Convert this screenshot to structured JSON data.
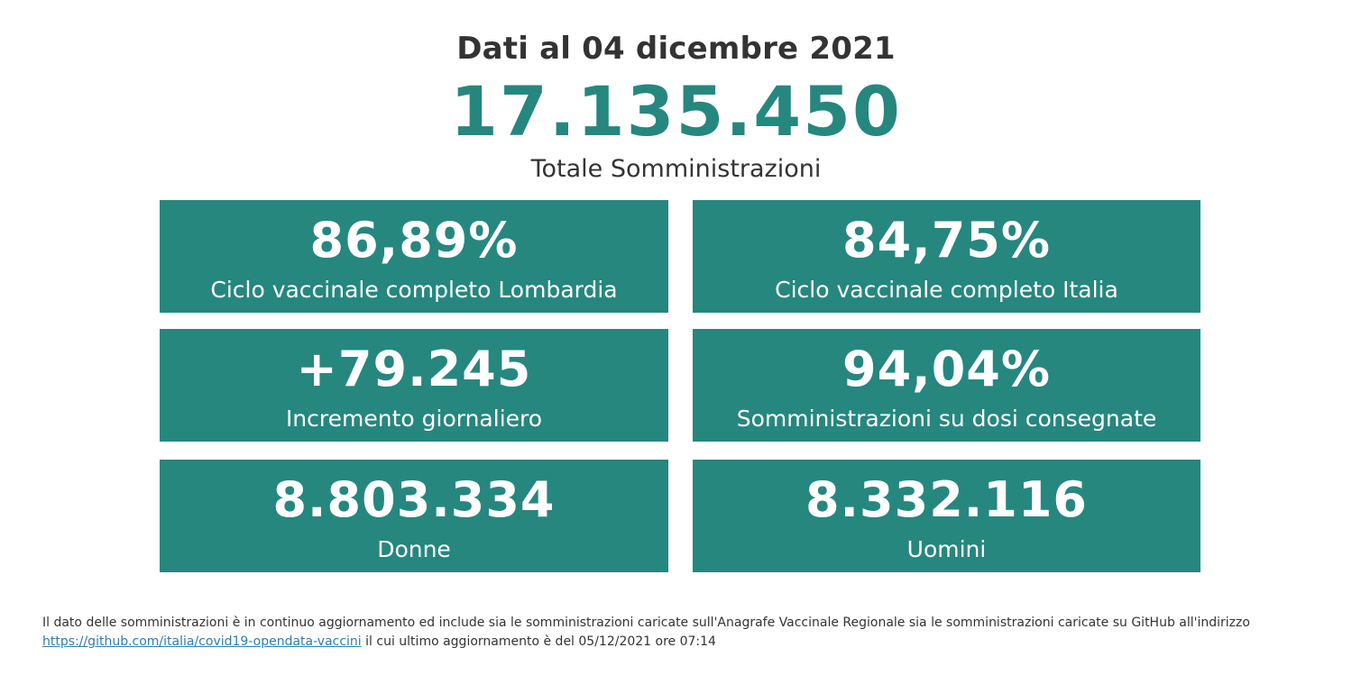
{
  "header": {
    "date_line": "Dati al 04 dicembre 2021",
    "total_value": "17.135.450",
    "total_label": "Totale Somministrazioni"
  },
  "cards": [
    {
      "value": "86,89%",
      "label": "Ciclo vaccinale completo Lombardia"
    },
    {
      "value": "84,75%",
      "label": "Ciclo vaccinale completo Italia"
    },
    {
      "value": "+79.245",
      "label": "Incremento giornaliero"
    },
    {
      "value": "94,04%",
      "label": "Somministrazioni su dosi consegnate"
    },
    {
      "value": "8.803.334",
      "label": "Donne"
    },
    {
      "value": "8.332.116",
      "label": "Uomini"
    }
  ],
  "footer": {
    "text_before": "Il dato delle somministrazioni è in continuo aggiornamento ed include sia le somministrazioni caricate sull'Anagrafe Vaccinale Regionale sia le somministrazioni caricate su GitHub all'indirizzo",
    "link_text": "https://github.com/italia/covid19-opendata-vaccini",
    "text_after": "il cui ultimo aggiornamento è del 05/12/2021 ore 07:14"
  },
  "colors": {
    "accent": "#26877f",
    "text": "#333333",
    "link": "#2a7fb0"
  }
}
